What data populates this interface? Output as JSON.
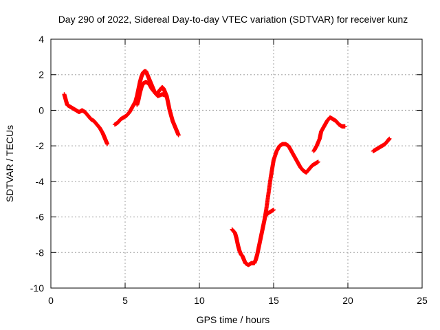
{
  "chart_data": {
    "type": "scatter",
    "title": "Day 290 of 2022, Sidereal Day-to-day VTEC variation (SDTVAR) for receiver kunz",
    "xlabel": "GPS time / hours",
    "ylabel": "SDTVAR / TECUs",
    "xlim": [
      0,
      25
    ],
    "ylim": [
      -10,
      4
    ],
    "xticks": [
      0,
      5,
      10,
      15,
      20,
      25
    ],
    "yticks": [
      -10,
      -8,
      -6,
      -4,
      -2,
      0,
      2,
      4
    ],
    "grid": true,
    "marker": "+",
    "color": "#ff0000",
    "segments": [
      [
        [
          0.9,
          0.9
        ],
        [
          1.0,
          0.6
        ],
        [
          1.1,
          0.3
        ],
        [
          1.3,
          0.2
        ],
        [
          1.5,
          0.1
        ],
        [
          1.7,
          0.0
        ],
        [
          1.9,
          -0.1
        ],
        [
          2.1,
          0.0
        ],
        [
          2.3,
          -0.1
        ],
        [
          2.5,
          -0.3
        ],
        [
          2.7,
          -0.5
        ],
        [
          2.9,
          -0.6
        ],
        [
          3.1,
          -0.8
        ],
        [
          3.3,
          -1.0
        ],
        [
          3.5,
          -1.3
        ],
        [
          3.6,
          -1.5
        ],
        [
          3.7,
          -1.7
        ],
        [
          3.8,
          -1.9
        ]
      ],
      [
        [
          4.3,
          -0.8
        ],
        [
          4.5,
          -0.7
        ],
        [
          4.7,
          -0.5
        ],
        [
          4.9,
          -0.4
        ],
        [
          5.1,
          -0.3
        ],
        [
          5.3,
          -0.1
        ],
        [
          5.5,
          0.2
        ],
        [
          5.7,
          0.5
        ],
        [
          5.8,
          0.8
        ],
        [
          5.9,
          1.2
        ],
        [
          6.0,
          1.6
        ],
        [
          6.1,
          1.9
        ],
        [
          6.2,
          2.1
        ],
        [
          6.3,
          2.2
        ],
        [
          6.4,
          2.2
        ],
        [
          6.5,
          2.0
        ],
        [
          6.6,
          1.8
        ],
        [
          6.7,
          1.6
        ],
        [
          6.8,
          1.4
        ],
        [
          6.9,
          1.2
        ],
        [
          7.0,
          1.0
        ],
        [
          7.1,
          0.9
        ],
        [
          7.2,
          1.0
        ],
        [
          7.3,
          1.1
        ],
        [
          7.4,
          1.2
        ],
        [
          7.5,
          1.3
        ],
        [
          7.6,
          1.2
        ],
        [
          7.7,
          1.0
        ],
        [
          7.8,
          0.8
        ],
        [
          7.9,
          0.4
        ],
        [
          8.0,
          0.0
        ],
        [
          8.1,
          -0.3
        ],
        [
          8.2,
          -0.6
        ],
        [
          8.3,
          -0.8
        ],
        [
          8.4,
          -1.0
        ],
        [
          8.5,
          -1.2
        ],
        [
          8.6,
          -1.4
        ]
      ],
      [
        [
          5.8,
          0.3
        ],
        [
          5.9,
          0.6
        ],
        [
          6.0,
          1.0
        ],
        [
          6.1,
          1.3
        ],
        [
          6.2,
          1.5
        ],
        [
          6.4,
          1.6
        ],
        [
          6.6,
          1.5
        ],
        [
          6.8,
          1.2
        ],
        [
          7.0,
          1.0
        ],
        [
          7.2,
          0.8
        ],
        [
          7.5,
          0.9
        ],
        [
          7.8,
          0.8
        ]
      ],
      [
        [
          12.2,
          -6.7
        ],
        [
          12.4,
          -6.9
        ],
        [
          12.5,
          -7.2
        ],
        [
          12.6,
          -7.6
        ],
        [
          12.7,
          -7.9
        ],
        [
          12.8,
          -8.1
        ],
        [
          12.9,
          -8.2
        ],
        [
          13.0,
          -8.4
        ],
        [
          13.1,
          -8.6
        ],
        [
          13.3,
          -8.7
        ],
        [
          13.5,
          -8.6
        ],
        [
          13.7,
          -8.6
        ],
        [
          13.8,
          -8.4
        ],
        [
          13.9,
          -8.1
        ],
        [
          14.0,
          -7.7
        ],
        [
          14.1,
          -7.3
        ],
        [
          14.2,
          -6.9
        ],
        [
          14.3,
          -6.5
        ],
        [
          14.4,
          -6.1
        ],
        [
          14.5,
          -5.6
        ],
        [
          14.6,
          -5.0
        ],
        [
          14.7,
          -4.4
        ],
        [
          14.8,
          -3.8
        ],
        [
          14.9,
          -3.3
        ],
        [
          15.0,
          -2.8
        ],
        [
          15.2,
          -2.3
        ],
        [
          15.4,
          -2.0
        ],
        [
          15.6,
          -1.9
        ],
        [
          15.8,
          -1.9
        ],
        [
          16.0,
          -2.0
        ],
        [
          16.2,
          -2.3
        ],
        [
          16.4,
          -2.6
        ],
        [
          16.6,
          -2.9
        ],
        [
          16.8,
          -3.2
        ],
        [
          17.0,
          -3.4
        ],
        [
          17.2,
          -3.5
        ],
        [
          17.4,
          -3.3
        ],
        [
          17.6,
          -3.1
        ],
        [
          17.8,
          -3.0
        ],
        [
          18.0,
          -2.9
        ]
      ],
      [
        [
          14.4,
          -6.0
        ],
        [
          14.6,
          -5.8
        ],
        [
          14.8,
          -5.7
        ],
        [
          15.0,
          -5.6
        ]
      ],
      [
        [
          17.7,
          -2.3
        ],
        [
          17.9,
          -2.0
        ],
        [
          18.1,
          -1.6
        ],
        [
          18.2,
          -1.2
        ],
        [
          18.4,
          -0.9
        ],
        [
          18.6,
          -0.6
        ],
        [
          18.8,
          -0.4
        ],
        [
          19.0,
          -0.5
        ],
        [
          19.2,
          -0.6
        ],
        [
          19.4,
          -0.8
        ],
        [
          19.6,
          -0.9
        ],
        [
          19.8,
          -0.9
        ]
      ],
      [
        [
          21.7,
          -2.3
        ],
        [
          21.9,
          -2.2
        ],
        [
          22.1,
          -2.1
        ],
        [
          22.3,
          -2.0
        ],
        [
          22.5,
          -1.9
        ],
        [
          22.7,
          -1.7
        ],
        [
          22.8,
          -1.6
        ]
      ]
    ]
  }
}
